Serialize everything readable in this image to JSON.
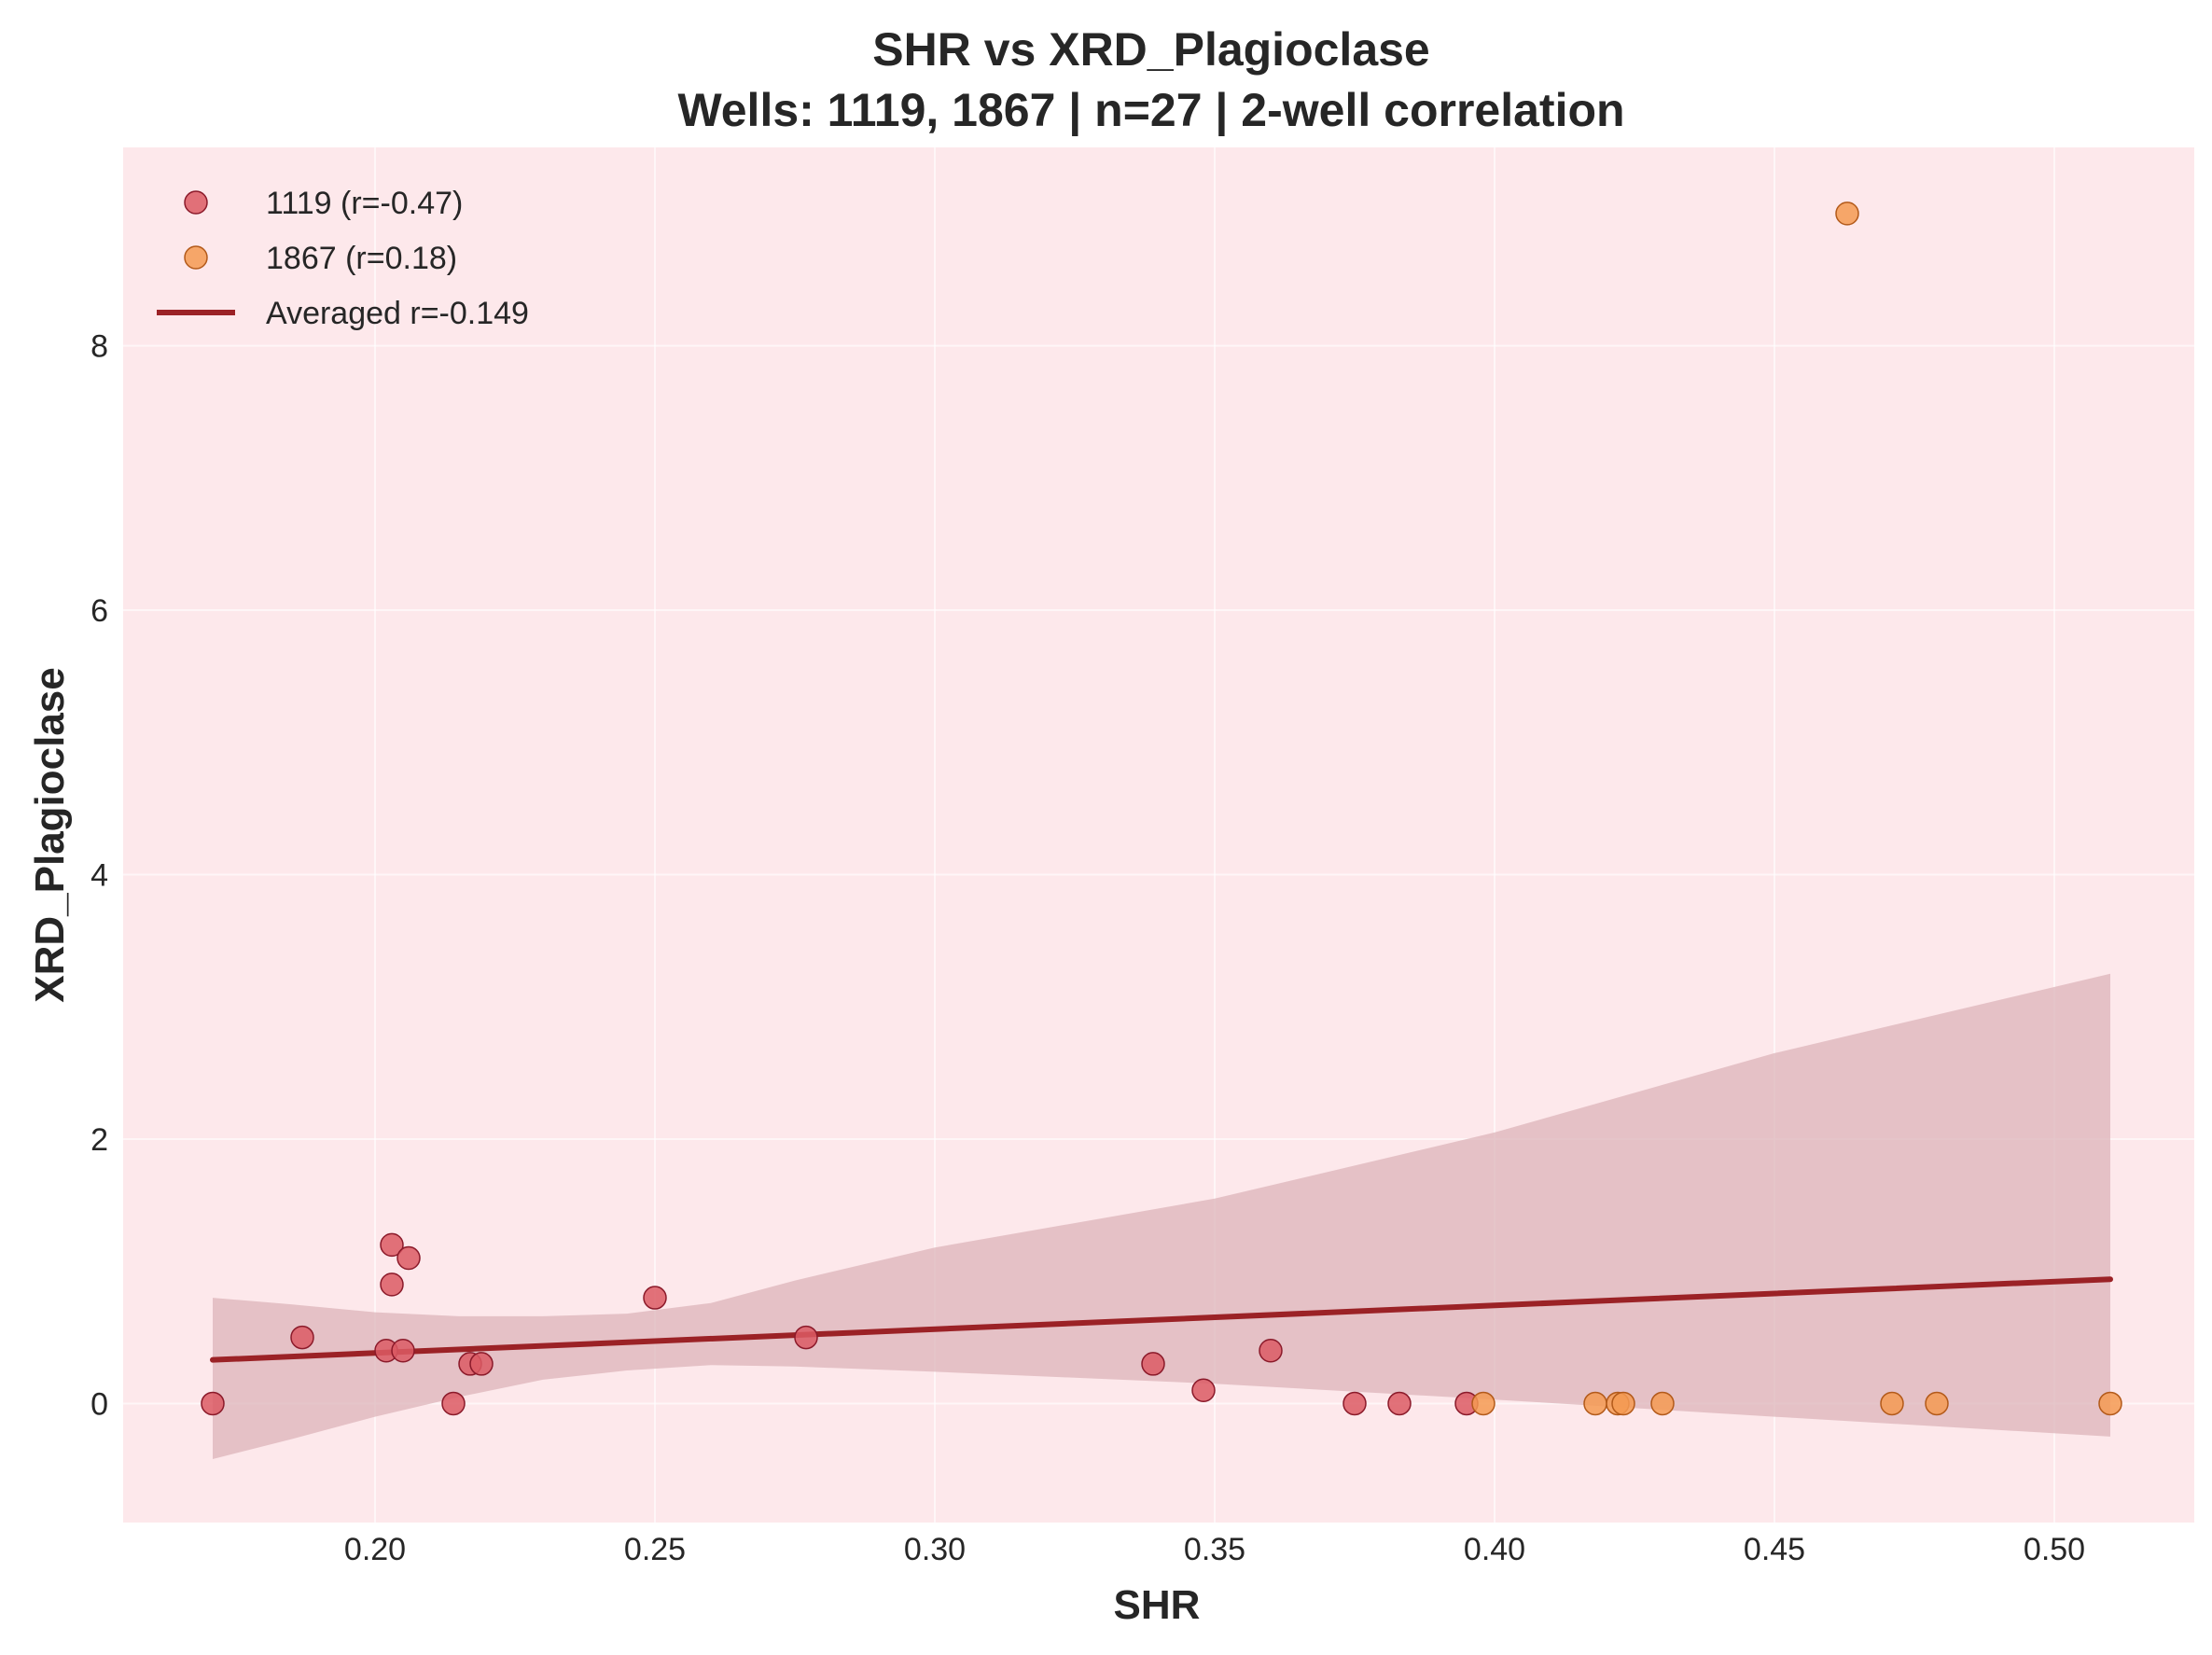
{
  "chart_data": {
    "type": "scatter",
    "title": "SHR vs XRD_Plagioclase",
    "subtitle": "Wells: 1119, 1867 | n=27 | 2-well correlation",
    "xlabel": "SHR",
    "ylabel": "XRD_Plagioclase",
    "xlim": [
      0.155,
      0.525
    ],
    "ylim": [
      -0.9,
      9.5
    ],
    "xticks": [
      0.2,
      0.25,
      0.3,
      0.35,
      0.4,
      0.45,
      0.5
    ],
    "xtick_labels": [
      "0.20",
      "0.25",
      "0.30",
      "0.35",
      "0.40",
      "0.45",
      "0.50"
    ],
    "yticks": [
      0,
      2,
      4,
      6,
      8
    ],
    "ytick_labels": [
      "0",
      "2",
      "4",
      "6",
      "8"
    ],
    "grid": true,
    "legend_position": "top-left",
    "background_color": "#fde8eb",
    "series": [
      {
        "name": "1119 (r=-0.47)",
        "color": "#dc5a64",
        "edge_color": "#8b1a2a",
        "points": [
          {
            "x": 0.171,
            "y": 0.0
          },
          {
            "x": 0.187,
            "y": 0.5
          },
          {
            "x": 0.202,
            "y": 0.4
          },
          {
            "x": 0.203,
            "y": 0.9
          },
          {
            "x": 0.203,
            "y": 1.2
          },
          {
            "x": 0.205,
            "y": 0.4
          },
          {
            "x": 0.206,
            "y": 1.1
          },
          {
            "x": 0.214,
            "y": 0.0
          },
          {
            "x": 0.217,
            "y": 0.3
          },
          {
            "x": 0.219,
            "y": 0.3
          },
          {
            "x": 0.25,
            "y": 0.8
          },
          {
            "x": 0.277,
            "y": 0.5
          },
          {
            "x": 0.339,
            "y": 0.3
          },
          {
            "x": 0.348,
            "y": 0.1
          },
          {
            "x": 0.36,
            "y": 0.4
          },
          {
            "x": 0.375,
            "y": 0.0
          },
          {
            "x": 0.383,
            "y": 0.0
          },
          {
            "x": 0.395,
            "y": 0.0
          }
        ]
      },
      {
        "name": "1867 (r=0.18)",
        "color": "#f59a52",
        "edge_color": "#b35a1a",
        "points": [
          {
            "x": 0.398,
            "y": 0.0
          },
          {
            "x": 0.418,
            "y": 0.0
          },
          {
            "x": 0.422,
            "y": 0.0
          },
          {
            "x": 0.423,
            "y": 0.0
          },
          {
            "x": 0.43,
            "y": 0.0
          },
          {
            "x": 0.463,
            "y": 9.0
          },
          {
            "x": 0.471,
            "y": 0.0
          },
          {
            "x": 0.479,
            "y": 0.0
          },
          {
            "x": 0.51,
            "y": 0.0
          }
        ]
      }
    ],
    "fit_line": {
      "name": "Averaged r=-0.149",
      "color": "#9b2226",
      "x": [
        0.171,
        0.51
      ],
      "y": [
        0.33,
        0.94
      ]
    },
    "confidence_band": {
      "color": "#dcb4b9",
      "x": [
        0.171,
        0.185,
        0.2,
        0.215,
        0.23,
        0.245,
        0.26,
        0.275,
        0.3,
        0.35,
        0.4,
        0.45,
        0.51
      ],
      "upper": [
        0.8,
        0.75,
        0.69,
        0.66,
        0.66,
        0.68,
        0.76,
        0.93,
        1.18,
        1.55,
        2.05,
        2.65,
        3.25
      ],
      "lower": [
        -0.42,
        -0.27,
        -0.1,
        0.05,
        0.18,
        0.25,
        0.29,
        0.28,
        0.24,
        0.15,
        0.03,
        -0.1,
        -0.25
      ]
    }
  }
}
